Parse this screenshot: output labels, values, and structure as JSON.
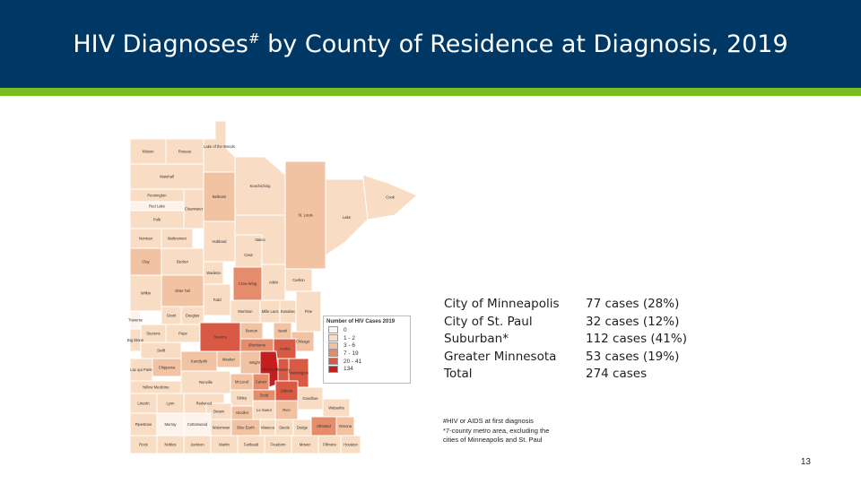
{
  "slide": {
    "title_main": "HIV Diagnoses",
    "title_sup": "#",
    "title_rest": " by County of Residence at Diagnosis, 2019",
    "page_number": "13",
    "colors": {
      "header": "#003865",
      "accent": "#78BE21"
    }
  },
  "map": {
    "counties": [
      "Kittson",
      "Roseau",
      "Lake of the Woods",
      "Marshall",
      "Koochiching",
      "Pennington",
      "Beltrami",
      "Red Lake",
      "Polk",
      "Clearwater",
      "Cook",
      "St. Louis",
      "Lake",
      "Itasca",
      "Norman",
      "Mahnomen",
      "Hubbard",
      "Cass",
      "Clay",
      "Becker",
      "Wadena",
      "Aitkin",
      "Carlton",
      "Crow Wing",
      "Wilkin",
      "Otter Tail",
      "Todd",
      "Morrison",
      "Mille Lacs",
      "Kanabec",
      "Pine",
      "Grant",
      "Douglas",
      "Traverse",
      "Stevens",
      "Pope",
      "Big Stone",
      "Stearns",
      "Benton",
      "Isanti",
      "Chisago",
      "Sherburne",
      "Swift",
      "Kandiyohi",
      "Meeker",
      "Wright",
      "Anoka",
      "Lac qui Parle",
      "Chippewa",
      "Hennepin",
      "Washington",
      "Renville",
      "McLeod",
      "Carver",
      "Ramsey",
      "Yellow Medicine",
      "Sibley",
      "Scott",
      "Dakota",
      "Lincoln",
      "Lyon",
      "Redwood",
      "Brown",
      "Nicollet",
      "Le Sueur",
      "Rice",
      "Goodhue",
      "Wabasha",
      "Pipestone",
      "Murray",
      "Cottonwood",
      "Watonwan",
      "Blue Earth",
      "Waseca",
      "Steele",
      "Dodge",
      "Olmsted",
      "Winona",
      "Rock",
      "Nobles",
      "Jackson",
      "Martin",
      "Faribault",
      "Freeborn",
      "Mower",
      "Fillmore",
      "Houston"
    ]
  },
  "legend": {
    "title": "Number of HIV Cases 2019",
    "items": [
      {
        "label": "0",
        "color": "#fdf3ea"
      },
      {
        "label": "1 - 2",
        "color": "#f8dcc3"
      },
      {
        "label": "3 - 6",
        "color": "#f2c3a3"
      },
      {
        "label": "7 - 19",
        "color": "#e58c6c"
      },
      {
        "label": "20 - 41",
        "color": "#d85a45"
      },
      {
        "label": "134",
        "color": "#c41e1e"
      }
    ]
  },
  "stats": [
    {
      "label": "City of Minneapolis",
      "value": "77 cases (28%)"
    },
    {
      "label": "City of St. Paul",
      "value": "32 cases (12%)"
    },
    {
      "label": "Suburban*",
      "value": "112 cases (41%)"
    },
    {
      "label": "Greater Minnesota",
      "value": "53 cases (19%)"
    },
    {
      "label": "Total",
      "value": "274 cases"
    }
  ],
  "notes": [
    "#HIV or AIDS at first diagnosis",
    "*7-county metro area, excluding the",
    "cities of Minneapolis and St. Paul"
  ]
}
